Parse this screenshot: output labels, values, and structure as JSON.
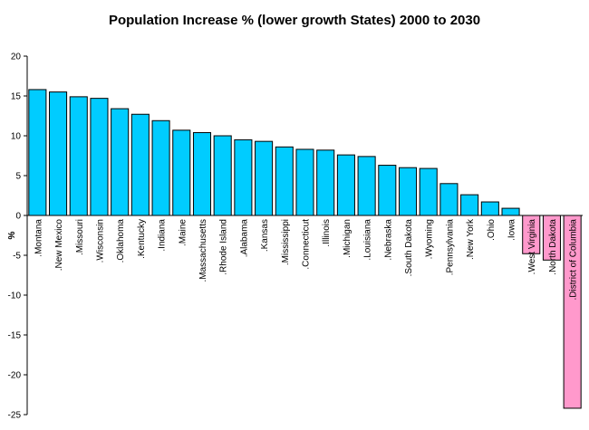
{
  "chart_data": {
    "type": "bar",
    "title": "Population Increase % (lower growth States) 2000 to 2030",
    "xlabel": "",
    "ylabel": "%",
    "ylim": [
      -25,
      20
    ],
    "yticks": [
      20,
      15,
      10,
      5,
      0,
      -5,
      -10,
      -15,
      -20,
      -25
    ],
    "grid": false,
    "legend": "none",
    "categories": [
      ".Montana",
      ".New Mexico",
      ".Missouri",
      ".Wisconsin",
      ".Oklahoma",
      ".Kentucky",
      ".Indiana",
      ".Maine",
      ".Massachusetts",
      ".Rhode Island",
      ".Alabama",
      ".Kansas",
      ".Mississippi",
      ".Connecticut",
      ".Illinois",
      ".Michigan",
      ".Louisiana",
      ".Nebraska",
      ".South Dakota",
      ".Wyoming",
      ".Pennsylvania",
      ".New York",
      ".Ohio",
      ".Iowa",
      ".West Virginia",
      ".North Dakota",
      ".District of Columbia"
    ],
    "values": [
      15.8,
      15.5,
      14.9,
      14.7,
      13.4,
      12.7,
      11.9,
      10.7,
      10.4,
      10.0,
      9.5,
      9.3,
      8.6,
      8.3,
      8.2,
      7.6,
      7.4,
      6.3,
      6.0,
      5.9,
      4.0,
      2.6,
      1.7,
      0.9,
      -4.8,
      -5.6,
      -24.2
    ],
    "colors": {
      "positive": "#00CCFF",
      "negative": "#FF99CC",
      "border": "#000000"
    }
  }
}
